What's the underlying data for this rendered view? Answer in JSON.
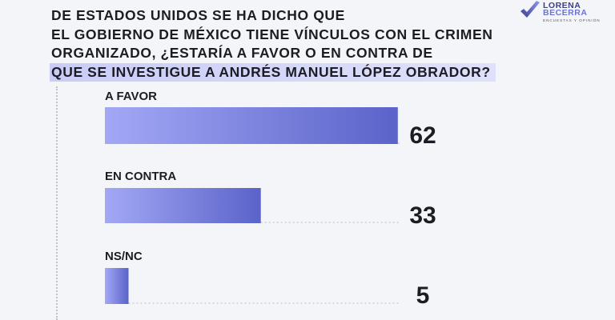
{
  "title_lines": [
    "DE ESTADOS UNIDOS SE HA DICHO QUE",
    "EL GOBIERNO DE MÉXICO TIENE VÍNCULOS CON EL CRIMEN",
    "ORGANIZADO, ¿ESTARÍA A FAVOR O EN CONTRA DE",
    "QUE SE INVESTIGUE A ANDRÉS MANUEL LÓPEZ OBRADOR?"
  ],
  "logo": {
    "name_line1": "LORENA",
    "name_line2": "BECERRA",
    "tagline": "ENCUESTAS Y OPINIÓN"
  },
  "colors": {
    "bar_start": "#a3a8f5",
    "bar_end": "#5a63c9",
    "guide": "#c5c7d2"
  },
  "chart_data": {
    "type": "bar",
    "orientation": "horizontal",
    "categories": [
      "A FAVOR",
      "EN CONTRA",
      "NS/NC"
    ],
    "values": [
      62,
      33,
      5
    ],
    "value_labels": [
      "62",
      "33",
      "5"
    ],
    "xlim": [
      0,
      70
    ]
  }
}
